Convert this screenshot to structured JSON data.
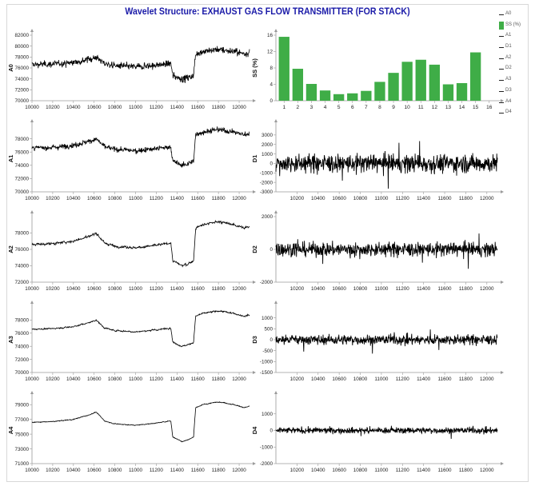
{
  "title": "Wavelet Structure: EXHAUST GAS FLOW TRANSMITTER (FOR STACK)",
  "legend": [
    {
      "label": "A0",
      "kind": "line"
    },
    {
      "label": "SS (%)",
      "kind": "bar"
    },
    {
      "label": "A1",
      "kind": "line"
    },
    {
      "label": "D1",
      "kind": "line"
    },
    {
      "label": "A2",
      "kind": "line"
    },
    {
      "label": "D2",
      "kind": "line"
    },
    {
      "label": "A3",
      "kind": "line"
    },
    {
      "label": "D3",
      "kind": "line"
    },
    {
      "label": "A4",
      "kind": "line"
    },
    {
      "label": "D4",
      "kind": "line"
    }
  ],
  "colors": {
    "series": "#000000",
    "bar": "#3fad47",
    "axis": "#9a9a9a",
    "title": "#1a1aa8"
  },
  "chart_data": [
    {
      "id": "A0",
      "type": "line",
      "ylabel": "A0",
      "xlim": [
        10000,
        12100
      ],
      "xticks": [
        "10000",
        "10200",
        "10400",
        "10600",
        "10800",
        "11000",
        "11200",
        "11400",
        "11600",
        "11800",
        "12000"
      ],
      "ylim": [
        70000,
        82000
      ],
      "yticks": [
        "70000",
        "72000",
        "74000",
        "76000",
        "78000",
        "80000",
        "82000"
      ],
      "noise": 1.0,
      "level_points": [
        [
          10000,
          76600
        ],
        [
          10200,
          76700
        ],
        [
          10400,
          77000
        ],
        [
          10550,
          77600
        ],
        [
          10620,
          78000
        ],
        [
          10700,
          76800
        ],
        [
          10800,
          76400
        ],
        [
          11000,
          76200
        ],
        [
          11200,
          76500
        ],
        [
          11340,
          76800
        ],
        [
          11360,
          74600
        ],
        [
          11450,
          74000
        ],
        [
          11500,
          74200
        ],
        [
          11560,
          74600
        ],
        [
          11580,
          78600
        ],
        [
          11650,
          79000
        ],
        [
          11800,
          79400
        ],
        [
          11950,
          79000
        ],
        [
          12050,
          78600
        ],
        [
          12100,
          78800
        ]
      ]
    },
    {
      "id": "SS",
      "type": "bar",
      "ylabel": "SS (%)",
      "categories": [
        "1",
        "2",
        "3",
        "4",
        "5",
        "6",
        "7",
        "8",
        "9",
        "10",
        "11",
        "12",
        "13",
        "14",
        "15",
        "16"
      ],
      "values": [
        15.6,
        7.8,
        4.1,
        2.5,
        1.6,
        1.8,
        2.4,
        4.6,
        6.8,
        9.5,
        10.0,
        8.8,
        4.0,
        4.3,
        11.8,
        0
      ],
      "ylim": [
        0,
        16
      ],
      "yticks": [
        "0",
        "4",
        "8",
        "12",
        "16"
      ]
    },
    {
      "id": "A1",
      "type": "line",
      "ylabel": "A1",
      "xlim": [
        10000,
        12100
      ],
      "xticks": [
        "10000",
        "10200",
        "10400",
        "10600",
        "10800",
        "11000",
        "11200",
        "11400",
        "11600",
        "11800",
        "12000"
      ],
      "ylim": [
        70000,
        80000
      ],
      "yticks": [
        "70000",
        "72000",
        "74000",
        "76000",
        "78000"
      ],
      "noise": 0.8,
      "level_points": [
        [
          10000,
          76600
        ],
        [
          10200,
          76700
        ],
        [
          10400,
          77000
        ],
        [
          10550,
          77600
        ],
        [
          10620,
          78000
        ],
        [
          10700,
          76800
        ],
        [
          10800,
          76400
        ],
        [
          11000,
          76200
        ],
        [
          11200,
          76500
        ],
        [
          11340,
          76800
        ],
        [
          11360,
          74600
        ],
        [
          11450,
          74000
        ],
        [
          11500,
          74200
        ],
        [
          11560,
          74600
        ],
        [
          11580,
          78600
        ],
        [
          11650,
          79000
        ],
        [
          11800,
          79400
        ],
        [
          11950,
          79000
        ],
        [
          12050,
          78600
        ],
        [
          12100,
          78800
        ]
      ]
    },
    {
      "id": "D1",
      "type": "line",
      "ylabel": "D1",
      "xlim": [
        10000,
        12100
      ],
      "xticks": [
        "10200",
        "10400",
        "10600",
        "10800",
        "11000",
        "11200",
        "11400",
        "11600",
        "11800",
        "12000"
      ],
      "ylim": [
        -3000,
        4000
      ],
      "yticks": [
        "-3000",
        "-2000",
        "-1000",
        "0",
        "1000",
        "2000",
        "3000"
      ],
      "noise": 0.9,
      "level_points": [
        [
          10000,
          0
        ],
        [
          12100,
          0
        ]
      ]
    },
    {
      "id": "A2",
      "type": "line",
      "ylabel": "A2",
      "xlim": [
        10000,
        12100
      ],
      "xticks": [
        "10000",
        "10200",
        "10400",
        "10600",
        "10800",
        "11000",
        "11200",
        "11400",
        "11600",
        "11800",
        "12000"
      ],
      "ylim": [
        72000,
        80000
      ],
      "yticks": [
        "72000",
        "74000",
        "76000",
        "78000"
      ],
      "noise": 0.55,
      "level_points": [
        [
          10000,
          76600
        ],
        [
          10200,
          76700
        ],
        [
          10400,
          77000
        ],
        [
          10550,
          77600
        ],
        [
          10620,
          78000
        ],
        [
          10700,
          76800
        ],
        [
          10800,
          76400
        ],
        [
          11000,
          76200
        ],
        [
          11200,
          76500
        ],
        [
          11340,
          76800
        ],
        [
          11360,
          74600
        ],
        [
          11450,
          74000
        ],
        [
          11500,
          74200
        ],
        [
          11560,
          74600
        ],
        [
          11580,
          78600
        ],
        [
          11650,
          79000
        ],
        [
          11800,
          79400
        ],
        [
          11950,
          79000
        ],
        [
          12050,
          78600
        ],
        [
          12100,
          78800
        ]
      ]
    },
    {
      "id": "D2",
      "type": "line",
      "ylabel": "D2",
      "xlim": [
        10000,
        12100
      ],
      "xticks": [
        "10200",
        "10400",
        "10600",
        "10800",
        "11000",
        "11200",
        "11400",
        "11600",
        "11800",
        "12000"
      ],
      "ylim": [
        -2000,
        2000
      ],
      "yticks": [
        "-2000",
        "0",
        "2000"
      ],
      "noise": 0.7,
      "level_points": [
        [
          10000,
          0
        ],
        [
          12100,
          0
        ]
      ]
    },
    {
      "id": "A3",
      "type": "line",
      "ylabel": "A3",
      "xlim": [
        10000,
        12100
      ],
      "xticks": [
        "10000",
        "10200",
        "10400",
        "10600",
        "10800",
        "11000",
        "11200",
        "11400",
        "11600",
        "11800",
        "12000"
      ],
      "ylim": [
        70000,
        80000
      ],
      "yticks": [
        "70000",
        "72000",
        "74000",
        "76000",
        "78000"
      ],
      "noise": 0.4,
      "level_points": [
        [
          10000,
          76600
        ],
        [
          10200,
          76700
        ],
        [
          10400,
          77000
        ],
        [
          10550,
          77600
        ],
        [
          10620,
          78000
        ],
        [
          10700,
          76800
        ],
        [
          10800,
          76400
        ],
        [
          11000,
          76200
        ],
        [
          11200,
          76500
        ],
        [
          11340,
          76800
        ],
        [
          11360,
          74600
        ],
        [
          11450,
          74000
        ],
        [
          11500,
          74200
        ],
        [
          11560,
          74600
        ],
        [
          11580,
          78600
        ],
        [
          11650,
          79000
        ],
        [
          11800,
          79400
        ],
        [
          11950,
          79000
        ],
        [
          12050,
          78600
        ],
        [
          12100,
          78800
        ]
      ]
    },
    {
      "id": "D3",
      "type": "line",
      "ylabel": "D3",
      "xlim": [
        10000,
        12100
      ],
      "xticks": [
        "10200",
        "10400",
        "10600",
        "10800",
        "11000",
        "11200",
        "11400",
        "11600",
        "11800",
        "12000"
      ],
      "ylim": [
        -1500,
        1500
      ],
      "yticks": [
        "-1500",
        "-1000",
        "-500",
        "0",
        "500",
        "1000"
      ],
      "noise": 0.5,
      "level_points": [
        [
          10000,
          0
        ],
        [
          12100,
          0
        ]
      ]
    },
    {
      "id": "A4",
      "type": "line",
      "ylabel": "A4",
      "xlim": [
        10000,
        12100
      ],
      "xticks": [
        "10000",
        "10200",
        "10400",
        "10600",
        "10800",
        "11000",
        "11200",
        "11400",
        "11600",
        "11800",
        "12000"
      ],
      "ylim": [
        71000,
        80000
      ],
      "yticks": [
        "71000",
        "73000",
        "75000",
        "77000",
        "79000"
      ],
      "noise": 0.25,
      "level_points": [
        [
          10000,
          76600
        ],
        [
          10200,
          76700
        ],
        [
          10400,
          77000
        ],
        [
          10550,
          77600
        ],
        [
          10620,
          78000
        ],
        [
          10700,
          76800
        ],
        [
          10800,
          76400
        ],
        [
          11000,
          76200
        ],
        [
          11200,
          76500
        ],
        [
          11340,
          76800
        ],
        [
          11360,
          74600
        ],
        [
          11450,
          74000
        ],
        [
          11500,
          74200
        ],
        [
          11560,
          74600
        ],
        [
          11580,
          78600
        ],
        [
          11650,
          79000
        ],
        [
          11800,
          79400
        ],
        [
          11950,
          79000
        ],
        [
          12050,
          78600
        ],
        [
          12100,
          78800
        ]
      ]
    },
    {
      "id": "D4",
      "type": "line",
      "ylabel": "D4",
      "xlim": [
        10000,
        12100
      ],
      "xticks": [
        "10200",
        "10400",
        "10600",
        "10800",
        "11000",
        "11200",
        "11400",
        "11600",
        "11800",
        "12000"
      ],
      "ylim": [
        -2000,
        2000
      ],
      "yticks": [
        "-2000",
        "-1000",
        "0",
        "1000"
      ],
      "noise": 0.3,
      "level_points": [
        [
          10000,
          0
        ],
        [
          12100,
          0
        ]
      ]
    }
  ]
}
